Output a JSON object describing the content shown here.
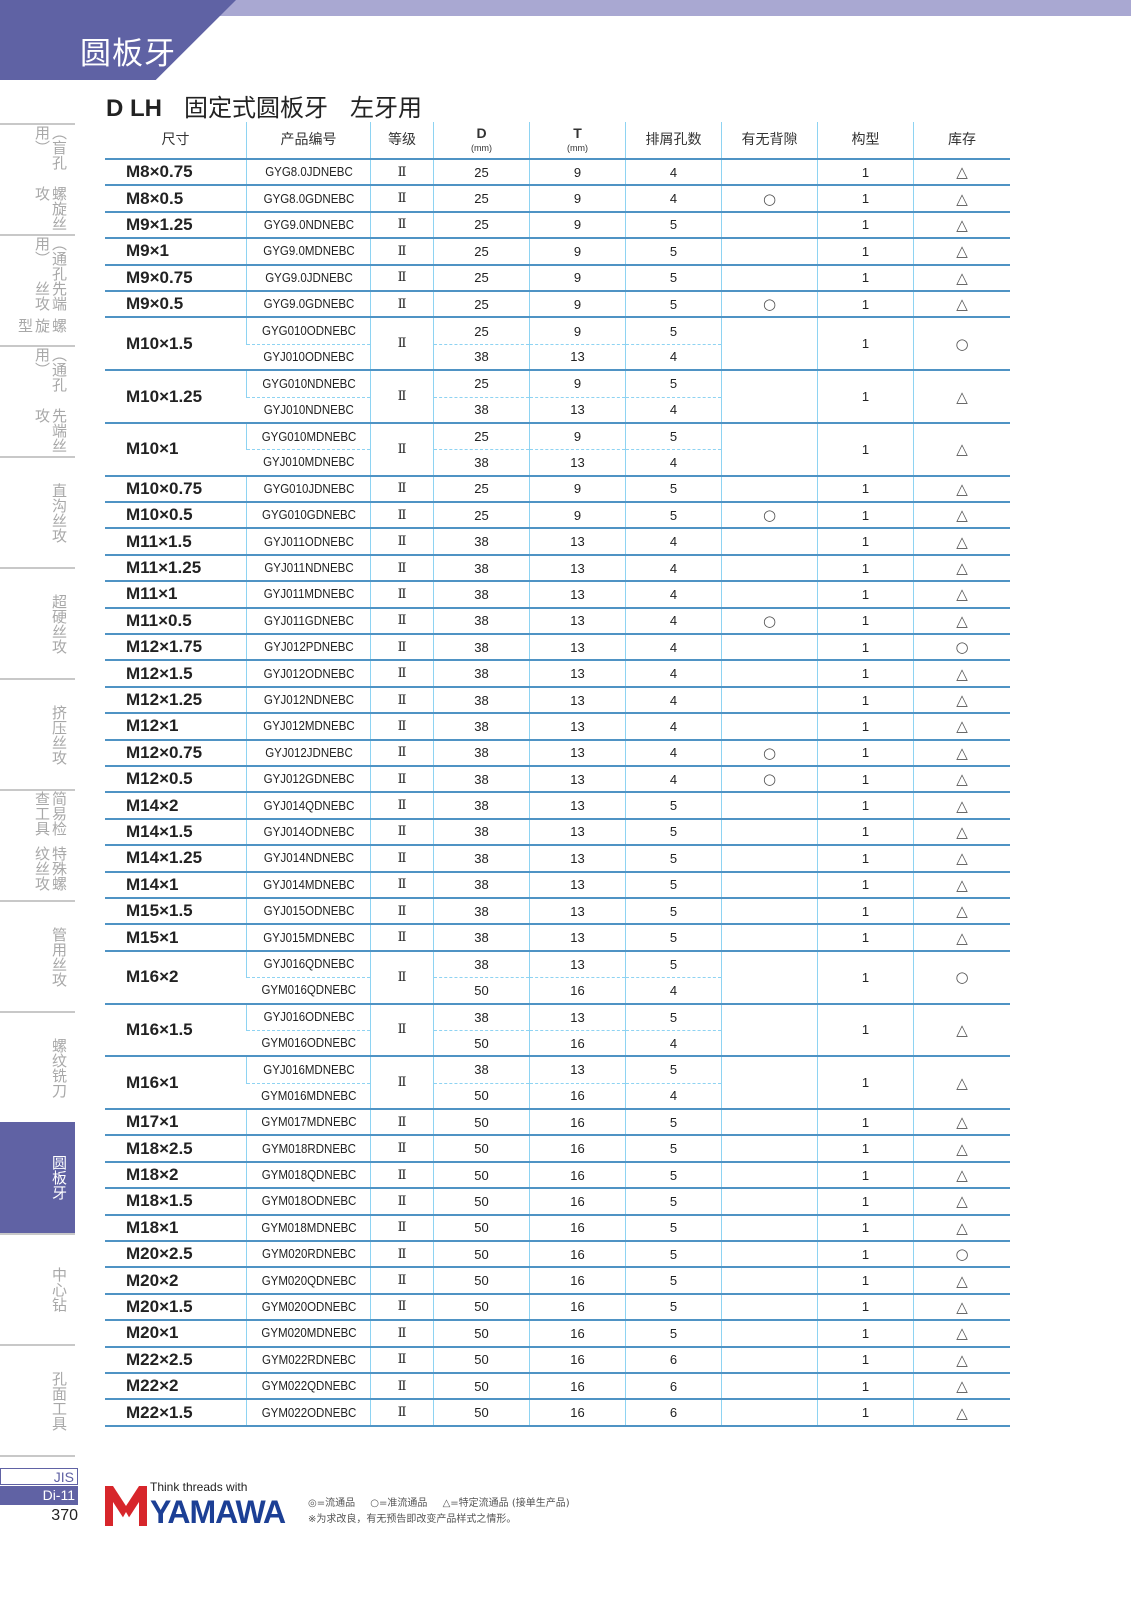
{
  "header": {
    "section_title": "圆板牙",
    "model": "D LH",
    "subtitle_1": "固定式圆板牙",
    "subtitle_2": "左牙用"
  },
  "colors": {
    "brand_purple": "#5f62a4",
    "light_purple": "#a9a8d2",
    "grid_blue": "#4f93c4",
    "logo_red": "#d7262b",
    "logo_blue": "#1c3f95"
  },
  "sidebar": {
    "items": [
      {
        "lines": [
          "螺旋丝攻",
          "（盲孔用）"
        ],
        "active": false
      },
      {
        "lines": [
          "螺旋型",
          "先端丝攻",
          "（通孔用）"
        ],
        "active": false
      },
      {
        "lines": [
          "先端丝攻",
          "（通孔用）"
        ],
        "active": false
      },
      {
        "lines": [
          "直沟丝攻"
        ],
        "active": false
      },
      {
        "lines": [
          "超硬丝攻"
        ],
        "active": false
      },
      {
        "lines": [
          "挤压丝攻"
        ],
        "active": false
      },
      {
        "lines": [
          "特殊螺纹丝攻",
          "简易检查工具"
        ],
        "active": false
      },
      {
        "lines": [
          "管用丝攻"
        ],
        "active": false
      },
      {
        "lines": [
          "螺纹铣刀"
        ],
        "active": false
      },
      {
        "lines": [
          "圆板牙"
        ],
        "active": true
      },
      {
        "lines": [
          "中心钻"
        ],
        "active": false
      },
      {
        "lines": [
          "孔面工具"
        ],
        "active": false
      }
    ]
  },
  "table": {
    "headers": {
      "size": "尺寸",
      "code": "产品编号",
      "grade": "等级",
      "d": "D",
      "d_unit": "(mm)",
      "t": "T",
      "t_unit": "(mm)",
      "holes": "排屑孔数",
      "backlash": "有无背隙",
      "type": "构型",
      "stock": "库存"
    },
    "rows": [
      {
        "size": "M8×0.75",
        "grade": "Ⅱ",
        "backlash": "",
        "type": "1",
        "stock": "△",
        "variants": [
          {
            "code": "GYG8.0JDNEBC",
            "d": "25",
            "t": "9",
            "holes": "4"
          }
        ]
      },
      {
        "size": "M8×0.5",
        "grade": "Ⅱ",
        "backlash": "○",
        "type": "1",
        "stock": "△",
        "variants": [
          {
            "code": "GYG8.0GDNEBC",
            "d": "25",
            "t": "9",
            "holes": "4"
          }
        ]
      },
      {
        "size": "M9×1.25",
        "grade": "Ⅱ",
        "backlash": "",
        "type": "1",
        "stock": "△",
        "variants": [
          {
            "code": "GYG9.0NDNEBC",
            "d": "25",
            "t": "9",
            "holes": "5"
          }
        ]
      },
      {
        "size": "M9×1",
        "grade": "Ⅱ",
        "backlash": "",
        "type": "1",
        "stock": "△",
        "variants": [
          {
            "code": "GYG9.0MDNEBC",
            "d": "25",
            "t": "9",
            "holes": "5"
          }
        ]
      },
      {
        "size": "M9×0.75",
        "grade": "Ⅱ",
        "backlash": "",
        "type": "1",
        "stock": "△",
        "variants": [
          {
            "code": "GYG9.0JDNEBC",
            "d": "25",
            "t": "9",
            "holes": "5"
          }
        ]
      },
      {
        "size": "M9×0.5",
        "grade": "Ⅱ",
        "backlash": "○",
        "type": "1",
        "stock": "△",
        "variants": [
          {
            "code": "GYG9.0GDNEBC",
            "d": "25",
            "t": "9",
            "holes": "5"
          }
        ]
      },
      {
        "size": "M10×1.5",
        "grade": "Ⅱ",
        "backlash": "",
        "type": "1",
        "stock": "○",
        "variants": [
          {
            "code": "GYG010ODNEBC",
            "d": "25",
            "t": "9",
            "holes": "5"
          },
          {
            "code": "GYJ010ODNEBC",
            "d": "38",
            "t": "13",
            "holes": "4"
          }
        ]
      },
      {
        "size": "M10×1.25",
        "grade": "Ⅱ",
        "backlash": "",
        "type": "1",
        "stock": "△",
        "variants": [
          {
            "code": "GYG010NDNEBC",
            "d": "25",
            "t": "9",
            "holes": "5"
          },
          {
            "code": "GYJ010NDNEBC",
            "d": "38",
            "t": "13",
            "holes": "4"
          }
        ]
      },
      {
        "size": "M10×1",
        "grade": "Ⅱ",
        "backlash": "",
        "type": "1",
        "stock": "△",
        "variants": [
          {
            "code": "GYG010MDNEBC",
            "d": "25",
            "t": "9",
            "holes": "5"
          },
          {
            "code": "GYJ010MDNEBC",
            "d": "38",
            "t": "13",
            "holes": "4"
          }
        ]
      },
      {
        "size": "M10×0.75",
        "grade": "Ⅱ",
        "backlash": "",
        "type": "1",
        "stock": "△",
        "variants": [
          {
            "code": "GYG010JDNEBC",
            "d": "25",
            "t": "9",
            "holes": "5"
          }
        ]
      },
      {
        "size": "M10×0.5",
        "grade": "Ⅱ",
        "backlash": "○",
        "type": "1",
        "stock": "△",
        "variants": [
          {
            "code": "GYG010GDNEBC",
            "d": "25",
            "t": "9",
            "holes": "5"
          }
        ]
      },
      {
        "size": "M11×1.5",
        "grade": "Ⅱ",
        "backlash": "",
        "type": "1",
        "stock": "△",
        "variants": [
          {
            "code": "GYJ011ODNEBC",
            "d": "38",
            "t": "13",
            "holes": "4"
          }
        ]
      },
      {
        "size": "M11×1.25",
        "grade": "Ⅱ",
        "backlash": "",
        "type": "1",
        "stock": "△",
        "variants": [
          {
            "code": "GYJ011NDNEBC",
            "d": "38",
            "t": "13",
            "holes": "4"
          }
        ]
      },
      {
        "size": "M11×1",
        "grade": "Ⅱ",
        "backlash": "",
        "type": "1",
        "stock": "△",
        "variants": [
          {
            "code": "GYJ011MDNEBC",
            "d": "38",
            "t": "13",
            "holes": "4"
          }
        ]
      },
      {
        "size": "M11×0.5",
        "grade": "Ⅱ",
        "backlash": "○",
        "type": "1",
        "stock": "△",
        "variants": [
          {
            "code": "GYJ011GDNEBC",
            "d": "38",
            "t": "13",
            "holes": "4"
          }
        ]
      },
      {
        "size": "M12×1.75",
        "grade": "Ⅱ",
        "backlash": "",
        "type": "1",
        "stock": "○",
        "variants": [
          {
            "code": "GYJ012PDNEBC",
            "d": "38",
            "t": "13",
            "holes": "4"
          }
        ]
      },
      {
        "size": "M12×1.5",
        "grade": "Ⅱ",
        "backlash": "",
        "type": "1",
        "stock": "△",
        "variants": [
          {
            "code": "GYJ012ODNEBC",
            "d": "38",
            "t": "13",
            "holes": "4"
          }
        ]
      },
      {
        "size": "M12×1.25",
        "grade": "Ⅱ",
        "backlash": "",
        "type": "1",
        "stock": "△",
        "variants": [
          {
            "code": "GYJ012NDNEBC",
            "d": "38",
            "t": "13",
            "holes": "4"
          }
        ]
      },
      {
        "size": "M12×1",
        "grade": "Ⅱ",
        "backlash": "",
        "type": "1",
        "stock": "△",
        "variants": [
          {
            "code": "GYJ012MDNEBC",
            "d": "38",
            "t": "13",
            "holes": "4"
          }
        ]
      },
      {
        "size": "M12×0.75",
        "grade": "Ⅱ",
        "backlash": "○",
        "type": "1",
        "stock": "△",
        "variants": [
          {
            "code": "GYJ012JDNEBC",
            "d": "38",
            "t": "13",
            "holes": "4"
          }
        ]
      },
      {
        "size": "M12×0.5",
        "grade": "Ⅱ",
        "backlash": "○",
        "type": "1",
        "stock": "△",
        "variants": [
          {
            "code": "GYJ012GDNEBC",
            "d": "38",
            "t": "13",
            "holes": "4"
          }
        ]
      },
      {
        "size": "M14×2",
        "grade": "Ⅱ",
        "backlash": "",
        "type": "1",
        "stock": "△",
        "variants": [
          {
            "code": "GYJ014QDNEBC",
            "d": "38",
            "t": "13",
            "holes": "5"
          }
        ]
      },
      {
        "size": "M14×1.5",
        "grade": "Ⅱ",
        "backlash": "",
        "type": "1",
        "stock": "△",
        "variants": [
          {
            "code": "GYJ014ODNEBC",
            "d": "38",
            "t": "13",
            "holes": "5"
          }
        ]
      },
      {
        "size": "M14×1.25",
        "grade": "Ⅱ",
        "backlash": "",
        "type": "1",
        "stock": "△",
        "variants": [
          {
            "code": "GYJ014NDNEBC",
            "d": "38",
            "t": "13",
            "holes": "5"
          }
        ]
      },
      {
        "size": "M14×1",
        "grade": "Ⅱ",
        "backlash": "",
        "type": "1",
        "stock": "△",
        "variants": [
          {
            "code": "GYJ014MDNEBC",
            "d": "38",
            "t": "13",
            "holes": "5"
          }
        ]
      },
      {
        "size": "M15×1.5",
        "grade": "Ⅱ",
        "backlash": "",
        "type": "1",
        "stock": "△",
        "variants": [
          {
            "code": "GYJ015ODNEBC",
            "d": "38",
            "t": "13",
            "holes": "5"
          }
        ]
      },
      {
        "size": "M15×1",
        "grade": "Ⅱ",
        "backlash": "",
        "type": "1",
        "stock": "△",
        "variants": [
          {
            "code": "GYJ015MDNEBC",
            "d": "38",
            "t": "13",
            "holes": "5"
          }
        ]
      },
      {
        "size": "M16×2",
        "grade": "Ⅱ",
        "backlash": "",
        "type": "1",
        "stock": "○",
        "variants": [
          {
            "code": "GYJ016QDNEBC",
            "d": "38",
            "t": "13",
            "holes": "5"
          },
          {
            "code": "GYM016QDNEBC",
            "d": "50",
            "t": "16",
            "holes": "4"
          }
        ]
      },
      {
        "size": "M16×1.5",
        "grade": "Ⅱ",
        "backlash": "",
        "type": "1",
        "stock": "△",
        "variants": [
          {
            "code": "GYJ016ODNEBC",
            "d": "38",
            "t": "13",
            "holes": "5"
          },
          {
            "code": "GYM016ODNEBC",
            "d": "50",
            "t": "16",
            "holes": "4"
          }
        ]
      },
      {
        "size": "M16×1",
        "grade": "Ⅱ",
        "backlash": "",
        "type": "1",
        "stock": "△",
        "variants": [
          {
            "code": "GYJ016MDNEBC",
            "d": "38",
            "t": "13",
            "holes": "5"
          },
          {
            "code": "GYM016MDNEBC",
            "d": "50",
            "t": "16",
            "holes": "4"
          }
        ]
      },
      {
        "size": "M17×1",
        "grade": "Ⅱ",
        "backlash": "",
        "type": "1",
        "stock": "△",
        "variants": [
          {
            "code": "GYM017MDNEBC",
            "d": "50",
            "t": "16",
            "holes": "5"
          }
        ]
      },
      {
        "size": "M18×2.5",
        "grade": "Ⅱ",
        "backlash": "",
        "type": "1",
        "stock": "△",
        "variants": [
          {
            "code": "GYM018RDNEBC",
            "d": "50",
            "t": "16",
            "holes": "5"
          }
        ]
      },
      {
        "size": "M18×2",
        "grade": "Ⅱ",
        "backlash": "",
        "type": "1",
        "stock": "△",
        "variants": [
          {
            "code": "GYM018QDNEBC",
            "d": "50",
            "t": "16",
            "holes": "5"
          }
        ]
      },
      {
        "size": "M18×1.5",
        "grade": "Ⅱ",
        "backlash": "",
        "type": "1",
        "stock": "△",
        "variants": [
          {
            "code": "GYM018ODNEBC",
            "d": "50",
            "t": "16",
            "holes": "5"
          }
        ]
      },
      {
        "size": "M18×1",
        "grade": "Ⅱ",
        "backlash": "",
        "type": "1",
        "stock": "△",
        "variants": [
          {
            "code": "GYM018MDNEBC",
            "d": "50",
            "t": "16",
            "holes": "5"
          }
        ]
      },
      {
        "size": "M20×2.5",
        "grade": "Ⅱ",
        "backlash": "",
        "type": "1",
        "stock": "○",
        "variants": [
          {
            "code": "GYM020RDNEBC",
            "d": "50",
            "t": "16",
            "holes": "5"
          }
        ]
      },
      {
        "size": "M20×2",
        "grade": "Ⅱ",
        "backlash": "",
        "type": "1",
        "stock": "△",
        "variants": [
          {
            "code": "GYM020QDNEBC",
            "d": "50",
            "t": "16",
            "holes": "5"
          }
        ]
      },
      {
        "size": "M20×1.5",
        "grade": "Ⅱ",
        "backlash": "",
        "type": "1",
        "stock": "△",
        "variants": [
          {
            "code": "GYM020ODNEBC",
            "d": "50",
            "t": "16",
            "holes": "5"
          }
        ]
      },
      {
        "size": "M20×1",
        "grade": "Ⅱ",
        "backlash": "",
        "type": "1",
        "stock": "△",
        "variants": [
          {
            "code": "GYM020MDNEBC",
            "d": "50",
            "t": "16",
            "holes": "5"
          }
        ]
      },
      {
        "size": "M22×2.5",
        "grade": "Ⅱ",
        "backlash": "",
        "type": "1",
        "stock": "△",
        "variants": [
          {
            "code": "GYM022RDNEBC",
            "d": "50",
            "t": "16",
            "holes": "6"
          }
        ]
      },
      {
        "size": "M22×2",
        "grade": "Ⅱ",
        "backlash": "",
        "type": "1",
        "stock": "△",
        "variants": [
          {
            "code": "GYM022QDNEBC",
            "d": "50",
            "t": "16",
            "holes": "6"
          }
        ]
      },
      {
        "size": "M22×1.5",
        "grade": "Ⅱ",
        "backlash": "",
        "type": "1",
        "stock": "△",
        "variants": [
          {
            "code": "GYM022ODNEBC",
            "d": "50",
            "t": "16",
            "holes": "6"
          }
        ]
      }
    ]
  },
  "footer": {
    "standard": "JIS",
    "section_code": "Di-11",
    "page_number": "370",
    "logo_tagline": "Think threads with",
    "logo_brand": "YAMAWA",
    "legend": [
      "◎=流通品",
      "○=准流通品",
      "△=特定流通品 (接单生产品)"
    ],
    "note": "※为求改良，有无预告即改变产品样式之情形。"
  }
}
